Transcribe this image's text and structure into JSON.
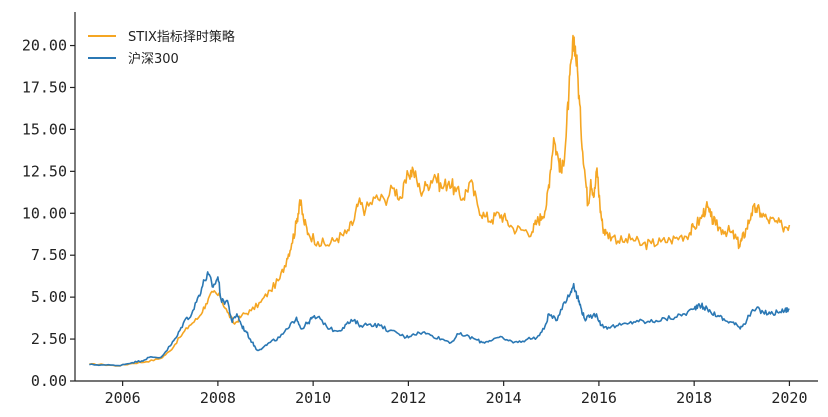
{
  "chart_data": {
    "type": "line",
    "title": "",
    "xlabel": "",
    "ylabel": "",
    "xlim": [
      2005.0,
      2020.6
    ],
    "ylim": [
      0,
      22
    ],
    "grid": false,
    "legend_position": "top-left",
    "x_ticks": [
      2006,
      2008,
      2010,
      2012,
      2014,
      2016,
      2018,
      2020
    ],
    "x_tick_labels": [
      "2006",
      "2008",
      "2010",
      "2012",
      "2014",
      "2016",
      "2018",
      "2020"
    ],
    "y_ticks": [
      0,
      2.5,
      5,
      7.5,
      10,
      12.5,
      15,
      17.5,
      20
    ],
    "y_tick_labels": [
      "0.00",
      "2.50",
      "5.00",
      "7.50",
      "10.00",
      "12.50",
      "15.00",
      "17.50",
      "20.00"
    ],
    "series": [
      {
        "name": "STIX指标择时策略",
        "color": "#f5a623",
        "points": [
          [
            2005.3,
            1.0
          ],
          [
            2005.6,
            0.98
          ],
          [
            2005.9,
            0.9
          ],
          [
            2006.2,
            1.05
          ],
          [
            2006.5,
            1.15
          ],
          [
            2006.8,
            1.35
          ],
          [
            2007.0,
            1.8
          ],
          [
            2007.2,
            2.6
          ],
          [
            2007.4,
            3.3
          ],
          [
            2007.6,
            3.8
          ],
          [
            2007.75,
            4.6
          ],
          [
            2007.9,
            5.3
          ],
          [
            2008.05,
            5.0
          ],
          [
            2008.2,
            4.1
          ],
          [
            2008.35,
            3.4
          ],
          [
            2008.5,
            3.9
          ],
          [
            2008.7,
            4.2
          ],
          [
            2008.9,
            4.7
          ],
          [
            2009.1,
            5.4
          ],
          [
            2009.3,
            6.1
          ],
          [
            2009.45,
            7.3
          ],
          [
            2009.55,
            8.2
          ],
          [
            2009.65,
            9.4
          ],
          [
            2009.72,
            10.8
          ],
          [
            2009.8,
            9.6
          ],
          [
            2009.9,
            8.8
          ],
          [
            2010.1,
            8.3
          ],
          [
            2010.3,
            8.1
          ],
          [
            2010.5,
            8.5
          ],
          [
            2010.7,
            8.8
          ],
          [
            2010.85,
            9.5
          ],
          [
            2010.95,
            10.6
          ],
          [
            2011.1,
            10.2
          ],
          [
            2011.3,
            10.9
          ],
          [
            2011.5,
            10.8
          ],
          [
            2011.7,
            11.5
          ],
          [
            2011.85,
            10.9
          ],
          [
            2012.0,
            12.3
          ],
          [
            2012.1,
            12.6
          ],
          [
            2012.25,
            11.3
          ],
          [
            2012.4,
            11.7
          ],
          [
            2012.55,
            12.3
          ],
          [
            2012.7,
            11.5
          ],
          [
            2012.85,
            11.9
          ],
          [
            2013.0,
            11.3
          ],
          [
            2013.15,
            10.9
          ],
          [
            2013.3,
            11.9
          ],
          [
            2013.45,
            10.5
          ],
          [
            2013.6,
            9.8
          ],
          [
            2013.75,
            9.6
          ],
          [
            2013.9,
            10.0
          ],
          [
            2014.05,
            9.6
          ],
          [
            2014.2,
            9.1
          ],
          [
            2014.4,
            9.0
          ],
          [
            2014.6,
            8.9
          ],
          [
            2014.7,
            9.5
          ],
          [
            2014.8,
            9.8
          ],
          [
            2014.9,
            10.5
          ],
          [
            2014.97,
            12.3
          ],
          [
            2015.05,
            14.5
          ],
          [
            2015.15,
            13.2
          ],
          [
            2015.22,
            12.4
          ],
          [
            2015.3,
            14.2
          ],
          [
            2015.37,
            17.2
          ],
          [
            2015.43,
            19.2
          ],
          [
            2015.48,
            20.5
          ],
          [
            2015.55,
            18.5
          ],
          [
            2015.62,
            15.2
          ],
          [
            2015.7,
            12.6
          ],
          [
            2015.77,
            10.5
          ],
          [
            2015.83,
            12.0
          ],
          [
            2015.9,
            11.0
          ],
          [
            2015.96,
            12.7
          ],
          [
            2016.02,
            10.5
          ],
          [
            2016.08,
            9.2
          ],
          [
            2016.15,
            8.8
          ],
          [
            2016.3,
            8.6
          ],
          [
            2016.5,
            8.3
          ],
          [
            2016.7,
            8.5
          ],
          [
            2016.9,
            8.1
          ],
          [
            2017.1,
            8.2
          ],
          [
            2017.3,
            8.3
          ],
          [
            2017.5,
            8.4
          ],
          [
            2017.7,
            8.6
          ],
          [
            2017.9,
            8.8
          ],
          [
            2018.0,
            9.2
          ],
          [
            2018.15,
            9.7
          ],
          [
            2018.25,
            10.4
          ],
          [
            2018.35,
            9.8
          ],
          [
            2018.45,
            9.3
          ],
          [
            2018.6,
            9.0
          ],
          [
            2018.75,
            8.9
          ],
          [
            2018.85,
            8.6
          ],
          [
            2018.95,
            8.1
          ],
          [
            2019.0,
            8.4
          ],
          [
            2019.1,
            9.1
          ],
          [
            2019.2,
            10.0
          ],
          [
            2019.3,
            10.3
          ],
          [
            2019.4,
            10.0
          ],
          [
            2019.55,
            9.6
          ],
          [
            2019.7,
            9.5
          ],
          [
            2019.85,
            9.2
          ],
          [
            2020.0,
            9.3
          ]
        ]
      },
      {
        "name": "沪深300",
        "color": "#2b78b4",
        "points": [
          [
            2005.3,
            0.98
          ],
          [
            2005.6,
            0.96
          ],
          [
            2005.9,
            0.92
          ],
          [
            2006.2,
            1.1
          ],
          [
            2006.4,
            1.2
          ],
          [
            2006.55,
            1.4
          ],
          [
            2006.8,
            1.4
          ],
          [
            2007.0,
            2.1
          ],
          [
            2007.15,
            2.7
          ],
          [
            2007.3,
            3.6
          ],
          [
            2007.45,
            4.0
          ],
          [
            2007.6,
            5.1
          ],
          [
            2007.72,
            6.0
          ],
          [
            2007.8,
            6.35
          ],
          [
            2007.9,
            5.6
          ],
          [
            2008.0,
            6.2
          ],
          [
            2008.08,
            4.7
          ],
          [
            2008.2,
            4.8
          ],
          [
            2008.3,
            3.5
          ],
          [
            2008.4,
            4.0
          ],
          [
            2008.5,
            3.3
          ],
          [
            2008.6,
            2.9
          ],
          [
            2008.72,
            2.3
          ],
          [
            2008.82,
            1.85
          ],
          [
            2008.95,
            2.0
          ],
          [
            2009.1,
            2.3
          ],
          [
            2009.3,
            2.6
          ],
          [
            2009.5,
            3.2
          ],
          [
            2009.65,
            3.8
          ],
          [
            2009.75,
            3.1
          ],
          [
            2009.9,
            3.5
          ],
          [
            2010.0,
            3.8
          ],
          [
            2010.15,
            3.7
          ],
          [
            2010.35,
            3.1
          ],
          [
            2010.55,
            3.0
          ],
          [
            2010.7,
            3.4
          ],
          [
            2010.85,
            3.6
          ],
          [
            2011.0,
            3.3
          ],
          [
            2011.2,
            3.4
          ],
          [
            2011.4,
            3.3
          ],
          [
            2011.6,
            3.0
          ],
          [
            2011.8,
            2.8
          ],
          [
            2011.95,
            2.6
          ],
          [
            2012.1,
            2.8
          ],
          [
            2012.3,
            2.9
          ],
          [
            2012.5,
            2.7
          ],
          [
            2012.7,
            2.5
          ],
          [
            2012.9,
            2.3
          ],
          [
            2013.05,
            2.8
          ],
          [
            2013.2,
            2.7
          ],
          [
            2013.4,
            2.5
          ],
          [
            2013.55,
            2.3
          ],
          [
            2013.7,
            2.4
          ],
          [
            2013.9,
            2.6
          ],
          [
            2014.1,
            2.4
          ],
          [
            2014.3,
            2.3
          ],
          [
            2014.5,
            2.5
          ],
          [
            2014.7,
            2.6
          ],
          [
            2014.85,
            3.1
          ],
          [
            2014.95,
            4.0
          ],
          [
            2015.1,
            3.6
          ],
          [
            2015.25,
            4.6
          ],
          [
            2015.4,
            5.2
          ],
          [
            2015.47,
            5.8
          ],
          [
            2015.55,
            5.0
          ],
          [
            2015.62,
            4.4
          ],
          [
            2015.7,
            3.7
          ],
          [
            2015.8,
            3.8
          ],
          [
            2015.95,
            4.0
          ],
          [
            2016.05,
            3.3
          ],
          [
            2016.2,
            3.2
          ],
          [
            2016.4,
            3.3
          ],
          [
            2016.6,
            3.4
          ],
          [
            2016.8,
            3.6
          ],
          [
            2017.0,
            3.5
          ],
          [
            2017.2,
            3.6
          ],
          [
            2017.4,
            3.7
          ],
          [
            2017.6,
            3.8
          ],
          [
            2017.8,
            4.0
          ],
          [
            2018.0,
            4.3
          ],
          [
            2018.1,
            4.6
          ],
          [
            2018.2,
            4.4
          ],
          [
            2018.35,
            4.1
          ],
          [
            2018.5,
            3.9
          ],
          [
            2018.65,
            3.6
          ],
          [
            2018.8,
            3.5
          ],
          [
            2018.95,
            3.2
          ],
          [
            2019.05,
            3.4
          ],
          [
            2019.15,
            3.9
          ],
          [
            2019.3,
            4.3
          ],
          [
            2019.45,
            4.1
          ],
          [
            2019.6,
            4.0
          ],
          [
            2019.75,
            4.1
          ],
          [
            2019.9,
            4.2
          ],
          [
            2020.0,
            4.3
          ]
        ]
      }
    ]
  }
}
